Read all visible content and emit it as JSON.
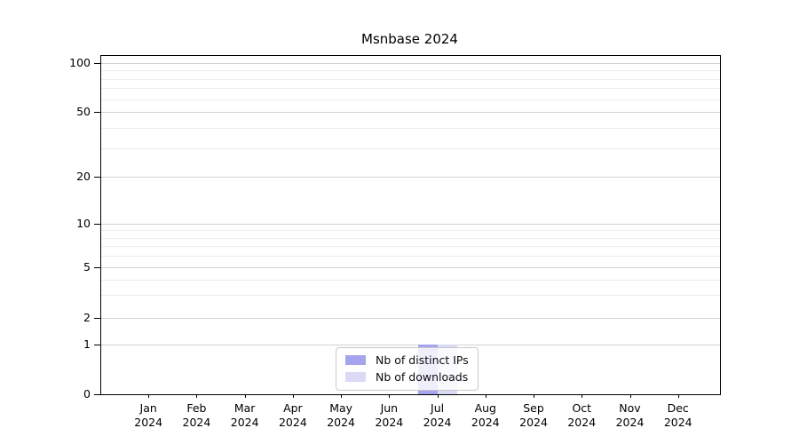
{
  "title": "Msnbase 2024",
  "chart_data": {
    "type": "bar",
    "title": "Msnbase 2024",
    "year": "2024",
    "months": [
      "Jan",
      "Feb",
      "Mar",
      "Apr",
      "May",
      "Jun",
      "Jul",
      "Aug",
      "Sep",
      "Oct",
      "Nov",
      "Dec"
    ],
    "series": [
      {
        "name": "Nb of distinct IPs",
        "color": "#a5a5ee",
        "values": [
          0,
          0,
          0,
          0,
          0,
          0,
          1,
          0,
          0,
          0,
          0,
          0
        ]
      },
      {
        "name": "Nb of downloads",
        "color": "#dadaf6",
        "values": [
          0,
          0,
          0,
          0,
          0,
          0,
          1,
          0,
          0,
          0,
          0,
          0
        ]
      }
    ],
    "y_axis": {
      "scale": "symlog",
      "major_ticks": [
        0,
        1,
        2,
        5,
        10,
        20,
        50,
        100
      ],
      "minor_gridlines": [
        3,
        4,
        6,
        7,
        8,
        9,
        30,
        40,
        60,
        70,
        80,
        90
      ],
      "ylim": [
        0,
        112
      ]
    },
    "x_axis": {
      "tick_format": "month over year",
      "ticks_visible": true
    },
    "legend": {
      "position": "bottom-center",
      "entries": [
        "Nb of distinct IPs",
        "Nb of downloads"
      ]
    },
    "grid": "horizontal major+minor"
  }
}
